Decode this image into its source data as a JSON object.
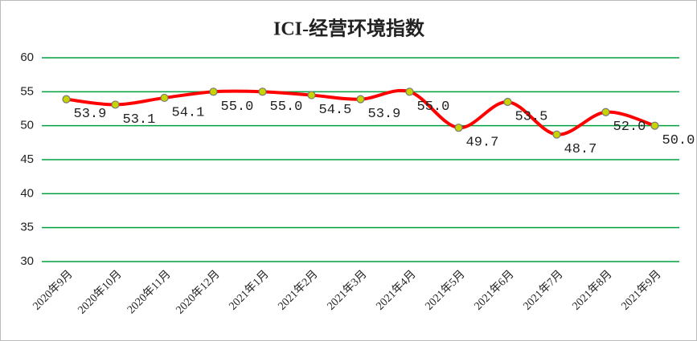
{
  "chart_data": {
    "type": "line",
    "title": "ICI-经营环境指数",
    "categories": [
      "2020年9月",
      "2020年10月",
      "2020年11月",
      "2020年12月",
      "2021年1月",
      "2021年2月",
      "2021年3月",
      "2021年4月",
      "2021年5月",
      "2021年6月",
      "2021年7月",
      "2021年8月",
      "2021年9月"
    ],
    "values": [
      53.9,
      53.1,
      54.1,
      55.0,
      55.0,
      54.5,
      53.9,
      55.0,
      49.7,
      53.5,
      48.7,
      52.0,
      50.0
    ],
    "value_labels": [
      "53.9",
      "53.1",
      "54.1",
      "55.0",
      "55.0",
      "54.5",
      "53.9",
      "55.0",
      "49.7",
      "53.5",
      "48.7",
      "52.0",
      "50.0"
    ],
    "color": "#ff0000",
    "marker_color": "#c8d400",
    "ylim": [
      30,
      60
    ],
    "yticks": [
      30,
      35,
      40,
      45,
      50,
      55,
      60
    ],
    "grid": true,
    "grid_color": "#00a040"
  }
}
